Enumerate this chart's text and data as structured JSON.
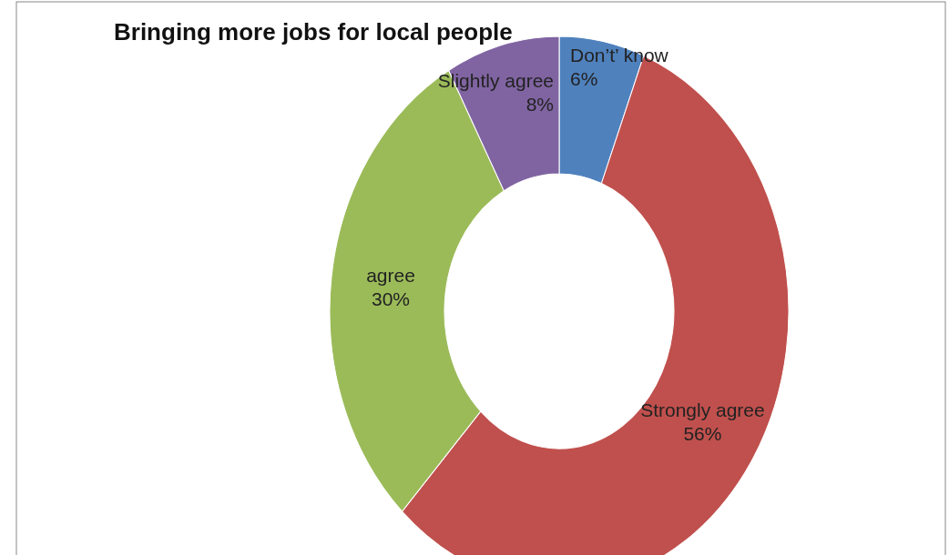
{
  "chart_data": {
    "type": "donut",
    "title": "Bringing more jobs for local people",
    "categories": [
      "Don’t’ know",
      "Strongly agree",
      "agree",
      "Slightly agree"
    ],
    "values": [
      6,
      56,
      30,
      8
    ],
    "colors": [
      "#4f81bd",
      "#c0504d",
      "#9bbb59",
      "#8064a2"
    ],
    "value_labels": [
      "6%",
      "56%",
      "30%",
      "8%"
    ]
  }
}
